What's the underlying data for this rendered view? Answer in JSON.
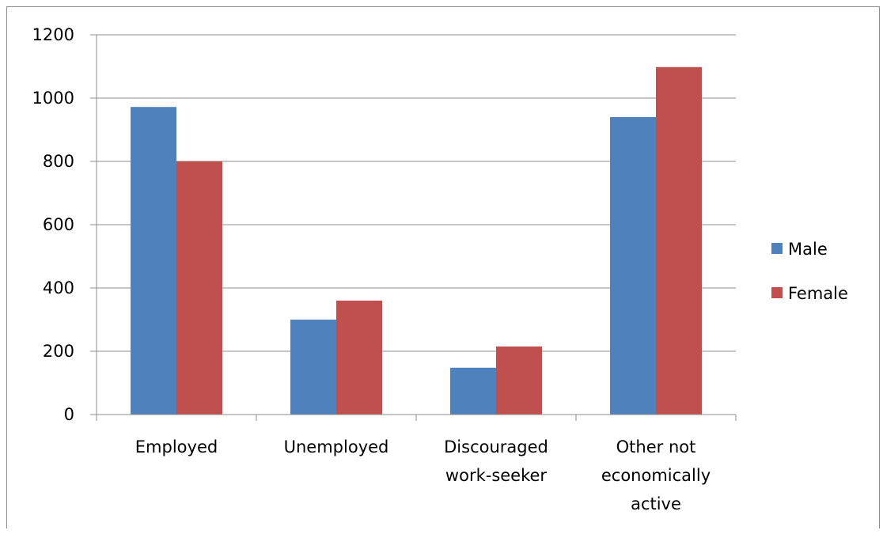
{
  "chart_data": {
    "type": "bar",
    "categories": [
      [
        "Employed"
      ],
      [
        "Unemployed"
      ],
      [
        "Discouraged",
        "work-seeker"
      ],
      [
        "Other not",
        "economically",
        "active"
      ]
    ],
    "series": [
      {
        "name": "Male",
        "color": "#4f81bd",
        "values": [
          972,
          300,
          148,
          940
        ]
      },
      {
        "name": "Female",
        "color": "#c0504d",
        "values": [
          800,
          360,
          215,
          1098
        ]
      }
    ],
    "yticks": [
      "0",
      "200",
      "400",
      "600",
      "800",
      "1000",
      "1200"
    ],
    "ylim": [
      0,
      1200
    ],
    "grid": true,
    "legend": "right",
    "title": "",
    "xlabel": "",
    "ylabel": ""
  }
}
